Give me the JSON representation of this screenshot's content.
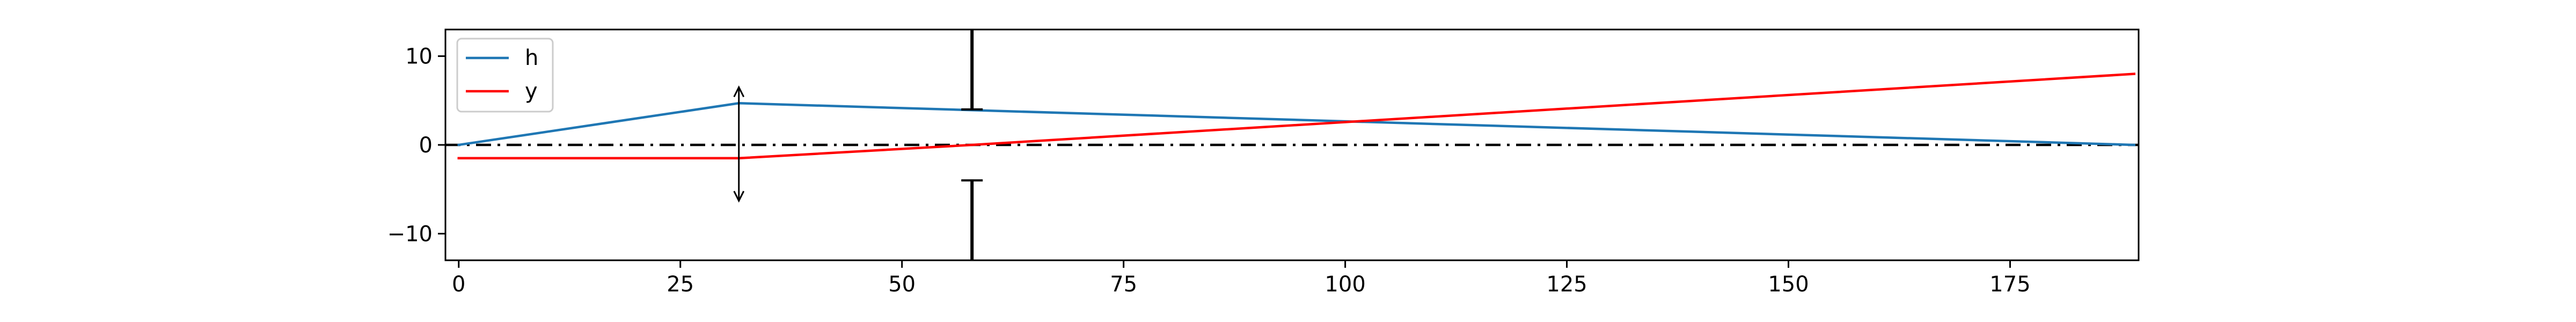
{
  "chart_data": {
    "type": "line",
    "xlim": [
      -1.5,
      189.5
    ],
    "ylim": [
      -13,
      13
    ],
    "x_ticks": [
      0,
      25,
      50,
      75,
      100,
      125,
      150,
      175
    ],
    "y_ticks": [
      -10,
      0,
      10
    ],
    "grid": false,
    "legend_placement": "top-left",
    "series": [
      {
        "name": "h",
        "color": "#1f77b4",
        "x": [
          0,
          31.6,
          189
        ],
        "y": [
          0,
          4.7,
          0
        ]
      },
      {
        "name": "y",
        "color": "#ff0000",
        "x": [
          0,
          31.6,
          57.9,
          189
        ],
        "y": [
          -1.5,
          -1.5,
          0,
          8.0
        ]
      }
    ],
    "reference_line": {
      "style": "dash-dot",
      "color": "#000000",
      "y": 0
    },
    "annotations": [
      {
        "type": "double-arrow",
        "x": 31.6,
        "y_from": 6.5,
        "y_to": -6.3,
        "color": "#000000"
      },
      {
        "type": "t-bar",
        "x": 57.9,
        "y_from": 13,
        "y_to": 4.0,
        "cap": "bottom",
        "color": "#000000"
      },
      {
        "type": "t-bar",
        "x": 57.9,
        "y_from": -13,
        "y_to": -4.0,
        "cap": "top",
        "color": "#000000"
      }
    ]
  }
}
